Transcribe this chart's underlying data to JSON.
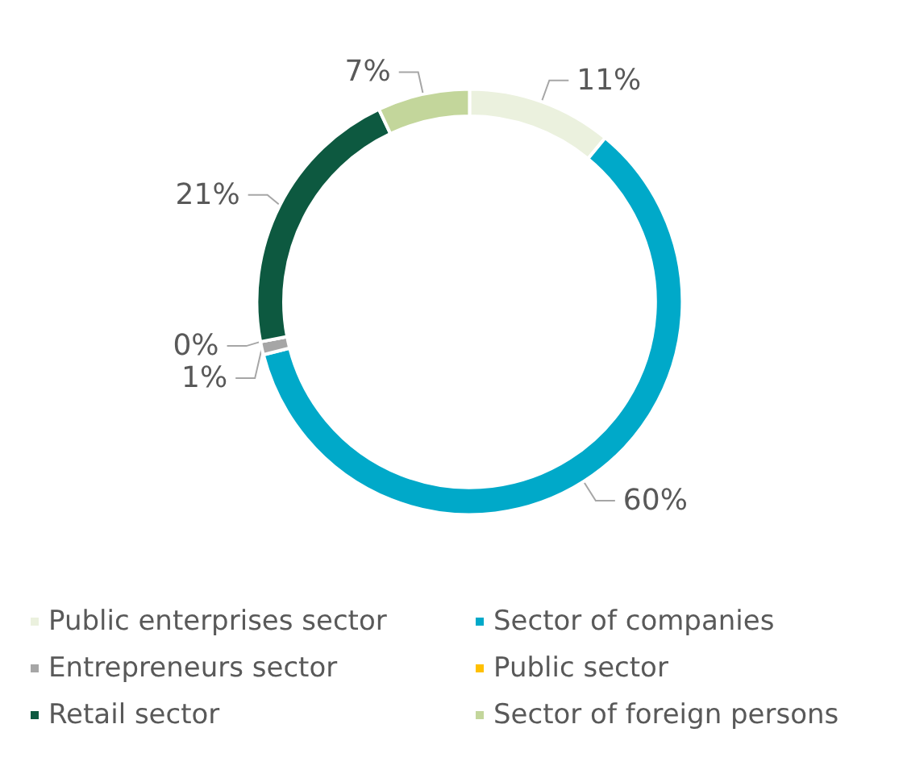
{
  "chart_data": {
    "type": "donut",
    "categories": [
      "Public enterprises sector",
      "Sector of companies",
      "Entrepreneurs sector",
      "Public sector",
      "Retail sector",
      "Sector of foreign persons"
    ],
    "values": [
      11,
      60,
      1,
      0,
      21,
      7
    ],
    "value_labels": [
      "11%",
      "60%",
      "1%",
      "0%",
      "21%",
      "7%"
    ],
    "colors": [
      "#ebf1de",
      "#00a9c9",
      "#a6a6a6",
      "#ffc000",
      "#0d5940",
      "#c3d69b"
    ],
    "legend": "bottom"
  }
}
